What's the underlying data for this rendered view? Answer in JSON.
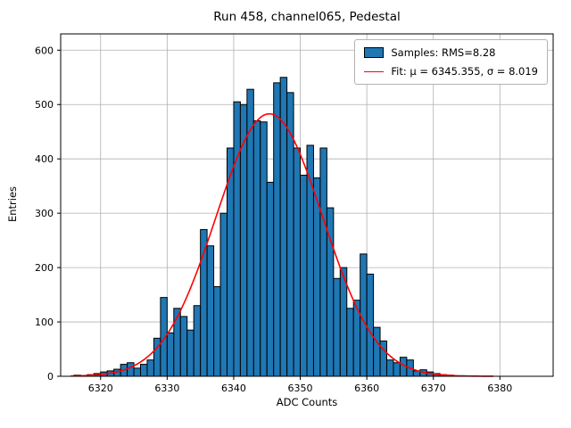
{
  "chart_data": {
    "type": "bar",
    "title": "Run 458, channel065, Pedestal",
    "xlabel": "ADC Counts",
    "ylabel": "Entries",
    "xlim": [
      6314,
      6388
    ],
    "ylim": [
      0,
      630
    ],
    "xticks": [
      6320,
      6330,
      6340,
      6350,
      6360,
      6370,
      6380
    ],
    "yticks": [
      0,
      100,
      200,
      300,
      400,
      500,
      600
    ],
    "grid": true,
    "bar_color": "#1f77b4",
    "bar_edge_color": "#000000",
    "fit_color": "#ff0000",
    "bins": {
      "start": 6316,
      "width": 1,
      "values": [
        2,
        1,
        3,
        5,
        8,
        10,
        13,
        22,
        25,
        15,
        22,
        30,
        70,
        145,
        80,
        125,
        110,
        85,
        130,
        270,
        240,
        165,
        300,
        420,
        505,
        500,
        528,
        470,
        468,
        357,
        540,
        550,
        522,
        420,
        370,
        425,
        365,
        420,
        310,
        180,
        200,
        125,
        140,
        225,
        188,
        90,
        65,
        30,
        25,
        35,
        30,
        10,
        12,
        8,
        5,
        3,
        2
      ]
    },
    "fit": {
      "mu": 6345.355,
      "sigma": 8.019,
      "amplitude": 483,
      "x_start": 6315.5,
      "x_end": 6379
    },
    "legend": {
      "position": "upper right",
      "entries": [
        {
          "type": "patch",
          "color": "#1f77b4",
          "label": "Samples: RMS=8.28"
        },
        {
          "type": "line",
          "color": "#ff0000",
          "label": "Fit: μ = 6345.355, σ = 8.019"
        }
      ]
    }
  }
}
